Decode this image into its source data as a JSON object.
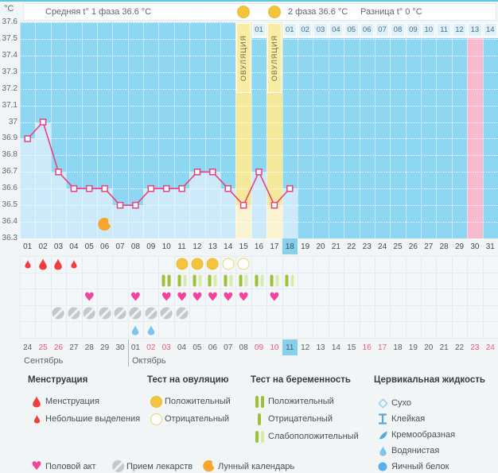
{
  "header": {
    "unit": "°C",
    "avg_phase1": "Средняя t° 1 фаза 36.6 °C",
    "avg_phase2": "2 фаза 36.6 °C",
    "diff": "Разница t° 0 °C"
  },
  "chart_data": {
    "type": "line",
    "title": "Basal body temperature cycle chart",
    "ylabel": "°C",
    "ylim": [
      36.3,
      37.6
    ],
    "ytick_step": 0.1,
    "x_cycle_days": 31,
    "cycle_day_labels": [
      "01",
      "02",
      "03",
      "04",
      "05",
      "06",
      "07",
      "08",
      "09",
      "10",
      "11",
      "12",
      "13",
      "14",
      "15",
      "16",
      "17",
      "18",
      "19",
      "20",
      "21",
      "22",
      "23",
      "24",
      "25",
      "26",
      "27",
      "28",
      "29",
      "30",
      "31"
    ],
    "temps_by_cycle_day": [
      36.9,
      37.0,
      36.7,
      36.6,
      36.6,
      36.6,
      36.5,
      36.5,
      36.6,
      36.6,
      36.6,
      36.7,
      36.7,
      36.6,
      36.5,
      36.7,
      36.5,
      36.6
    ],
    "ovulation": {
      "days": [
        15,
        17
      ],
      "label": "ОВУЛЯЦИЯ",
      "dpo_after_first": [
        "01"
      ],
      "dpo_after_second": [
        "01",
        "02",
        "03",
        "04",
        "05",
        "06",
        "07",
        "08",
        "09",
        "10",
        "11",
        "12",
        "13",
        "14"
      ]
    },
    "expected_period_day": 30,
    "today_cycle_day": 18,
    "moon_cycle_day": 6,
    "grid": "dotted-horizontal",
    "legend_position": "bottom"
  },
  "dates": {
    "months": [
      {
        "name": "Сентябрь",
        "days": [
          "24",
          "25",
          "26",
          "27",
          "28",
          "29",
          "30"
        ],
        "weekend": [
          "25",
          "26"
        ]
      },
      {
        "name": "Октябрь",
        "days": [
          "01",
          "02",
          "03",
          "04",
          "05",
          "06",
          "07",
          "08",
          "09",
          "10",
          "11",
          "12",
          "13",
          "14",
          "15",
          "16",
          "17",
          "18",
          "19",
          "20",
          "21",
          "22",
          "23",
          "24"
        ],
        "weekend": [
          "02",
          "03",
          "09",
          "10",
          "16",
          "17",
          "23",
          "24"
        ]
      }
    ],
    "today": {
      "month_index": 1,
      "day": "11"
    }
  },
  "events": {
    "menstruation": [
      {
        "col": 1,
        "type": "spotting"
      },
      {
        "col": 2,
        "type": "menses"
      },
      {
        "col": 3,
        "type": "menses"
      },
      {
        "col": 4,
        "type": "spotting"
      }
    ],
    "ovulation_tests": [
      {
        "col": 11,
        "result": "positive"
      },
      {
        "col": 12,
        "result": "positive"
      },
      {
        "col": 13,
        "result": "positive"
      },
      {
        "col": 14,
        "result": "negative"
      },
      {
        "col": 15,
        "result": "negative"
      }
    ],
    "pregnancy_tests": [
      {
        "col": 10,
        "result": "positive"
      },
      {
        "col": 11,
        "result": "weak"
      },
      {
        "col": 12,
        "result": "weak"
      },
      {
        "col": 13,
        "result": "weak"
      },
      {
        "col": 14,
        "result": "weak"
      },
      {
        "col": 15,
        "result": "weak"
      },
      {
        "col": 16,
        "result": "weak"
      },
      {
        "col": 17,
        "result": "weak"
      },
      {
        "col": 18,
        "result": "weak"
      }
    ],
    "intercourse_cols": [
      5,
      8,
      10,
      11,
      12,
      13,
      14,
      15,
      17
    ],
    "medication_cols": [
      3,
      4,
      5,
      6,
      7,
      8,
      9,
      10,
      11
    ],
    "cervical_fluid": [
      {
        "col": 8,
        "type": "watery"
      },
      {
        "col": 9,
        "type": "watery"
      }
    ]
  },
  "legend": {
    "sections": [
      {
        "title": "Менструация",
        "items": [
          {
            "icon": "drop-large",
            "label": "Менструация"
          },
          {
            "icon": "drop-small",
            "label": "Небольшие выделения"
          }
        ]
      },
      {
        "title": "Тест на овуляцию",
        "items": [
          {
            "icon": "ovu-positive",
            "label": "Положительный"
          },
          {
            "icon": "ovu-negative",
            "label": "Отрицательный"
          }
        ]
      },
      {
        "title": "Тест на беременность",
        "items": [
          {
            "icon": "preg-positive",
            "label": "Положительный"
          },
          {
            "icon": "preg-negative",
            "label": "Отрицательный"
          },
          {
            "icon": "preg-weak",
            "label": "Слабоположительный"
          }
        ]
      },
      {
        "title": "Цервикальная жидкость",
        "items": [
          {
            "icon": "cf-dry",
            "label": "Сухо"
          },
          {
            "icon": "cf-sticky",
            "label": "Клейкая"
          },
          {
            "icon": "cf-creamy",
            "label": "Кремообразная"
          },
          {
            "icon": "cf-watery",
            "label": "Водянистая"
          },
          {
            "icon": "cf-eggwhite",
            "label": "Яичный белок"
          }
        ]
      }
    ],
    "extras": [
      {
        "icon": "heart",
        "label": "Половой акт"
      },
      {
        "icon": "pill",
        "label": "Прием лекарств"
      },
      {
        "icon": "moon",
        "label": "Лунный календарь"
      }
    ]
  },
  "colors": {
    "accent_top": "#5ac8de",
    "sky": "#8ed7f3",
    "under_curve": "#cdeafa",
    "line": "#e8417c",
    "ovulation_sky": "#f5e99b",
    "ovulation_under": "#faf4d2",
    "ovulation_label_bg": "#f8eda2",
    "period_pink": "#f8bacf",
    "dpo_bg": "#ddf1fa",
    "highlight": "#86d0ee",
    "weekend_red": "#ee5876",
    "menses_red": "#f23d3d",
    "heart_pink": "#f2449c",
    "test_yellow": "#f2c53d",
    "test_yellow_outline": "#edd468",
    "preg_dark": "#9cc23a",
    "preg_light": "#d9eaae",
    "pill_gray": "#c5c8cb",
    "moon_orange": "#f7a62b",
    "fluid_blue": "#6fbcec",
    "grid_bg": "#f3f7f9",
    "grid_line": "#e4ecf0",
    "text": "#4a545c"
  }
}
